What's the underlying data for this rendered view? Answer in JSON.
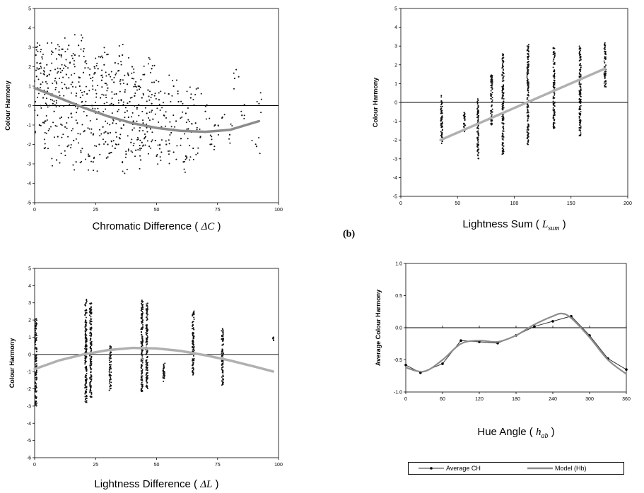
{
  "panel_label_b": "(b)",
  "colors": {
    "points": "#111111",
    "model": "#8c8c8c",
    "model_light": "#b0b0b0",
    "avg_line": "#333333"
  },
  "legend": {
    "average_ch": "Average CH",
    "model_hb": "Model (Hb)"
  },
  "chart_data": [
    {
      "id": "chart-a",
      "type": "scatter",
      "title": "",
      "ylabel": "Colour Harmony",
      "xlabel_text": "Chromatic Difference ( ",
      "xlabel_symbol": "ΔC",
      "xlabel_close": " )",
      "xlim": [
        0,
        100
      ],
      "ylim": [
        -5,
        5
      ],
      "xticks": [
        "0",
        "25",
        "50",
        "75",
        "100"
      ],
      "yticks": [
        "5",
        "4",
        "3",
        "2",
        "1",
        "0",
        "-1",
        "-2",
        "-3",
        "-4",
        "-5"
      ],
      "zero_line": true,
      "points": [
        [
          0.5,
          2.6
        ],
        [
          1,
          2.2
        ],
        [
          0.8,
          1.5
        ],
        [
          1.5,
          0.8
        ],
        [
          2,
          1.9
        ],
        [
          0.3,
          0.2
        ],
        [
          1.2,
          -0.5
        ],
        [
          2.5,
          1.1
        ],
        [
          0.6,
          3.0
        ],
        [
          3,
          2.5
        ],
        [
          3.5,
          0.4
        ],
        [
          4,
          1.6
        ],
        [
          4.5,
          -0.8
        ],
        [
          5,
          2.1
        ],
        [
          5.5,
          0.9
        ],
        [
          6,
          -1.2
        ],
        [
          6.5,
          1.8
        ],
        [
          7,
          2.8
        ],
        [
          7.5,
          0.1
        ],
        [
          8,
          -0.3
        ],
        [
          8.5,
          1.4
        ],
        [
          9,
          2.4
        ],
        [
          9.5,
          -1.6
        ],
        [
          10,
          0.7
        ],
        [
          10.5,
          1.9
        ],
        [
          11,
          -0.6
        ],
        [
          11.5,
          2.9
        ],
        [
          12,
          0.3
        ],
        [
          12.5,
          -1.1
        ],
        [
          13,
          1.6
        ],
        [
          13.5,
          -2.1
        ],
        [
          14,
          0.9
        ],
        [
          14.5,
          2.2
        ],
        [
          15,
          -0.4
        ],
        [
          15.5,
          1.2
        ],
        [
          16,
          -1.8
        ],
        [
          16.5,
          2.6
        ],
        [
          17,
          0.5
        ],
        [
          17.5,
          -0.9
        ],
        [
          18,
          3.1
        ],
        [
          18.5,
          1.0
        ],
        [
          19,
          -2.4
        ],
        [
          19.5,
          0.2
        ],
        [
          20,
          1.7
        ],
        [
          20.5,
          -1.3
        ],
        [
          21,
          2.3
        ],
        [
          21.5,
          0.6
        ],
        [
          22,
          -0.2
        ],
        [
          22.5,
          -2.6
        ],
        [
          23,
          1.4
        ],
        [
          23.5,
          0.0
        ],
        [
          24,
          -1.5
        ],
        [
          24.5,
          2.0
        ],
        [
          25,
          0.8
        ],
        [
          25.5,
          -0.7
        ],
        [
          26,
          1.9
        ],
        [
          26.5,
          -2.0
        ],
        [
          27,
          0.4
        ],
        [
          27.5,
          1.3
        ],
        [
          28,
          -1.1
        ],
        [
          28.5,
          2.1
        ],
        [
          29,
          -0.5
        ],
        [
          29.5,
          -2.7
        ],
        [
          30,
          0.9
        ],
        [
          30.5,
          1.6
        ],
        [
          31,
          -1.4
        ],
        [
          31.5,
          0.1
        ],
        [
          32,
          -0.9
        ],
        [
          32.5,
          1.2
        ],
        [
          33,
          -2.2
        ],
        [
          33.5,
          0.6
        ],
        [
          34,
          -0.3
        ],
        [
          34.5,
          1.8
        ],
        [
          35,
          -1.7
        ],
        [
          35.5,
          0.3
        ],
        [
          36,
          2.6
        ],
        [
          36.5,
          -1.0
        ],
        [
          37,
          0.7
        ],
        [
          37.5,
          -2.5
        ],
        [
          38,
          1.1
        ],
        [
          38.5,
          -0.6
        ],
        [
          39,
          0.2
        ],
        [
          39.5,
          -1.9
        ],
        [
          40,
          1.4
        ],
        [
          40.5,
          -0.8
        ],
        [
          41,
          0.5
        ],
        [
          41.5,
          -2.3
        ],
        [
          42,
          -0.1
        ],
        [
          42.5,
          1.0
        ],
        [
          43,
          -1.3
        ],
        [
          43.5,
          -2.8
        ],
        [
          44,
          0.4
        ],
        [
          44.5,
          -0.9
        ],
        [
          45,
          1.6
        ],
        [
          45.5,
          -1.6
        ],
        [
          46,
          -0.4
        ],
        [
          46.5,
          0.8
        ],
        [
          47,
          -2.1
        ],
        [
          47.5,
          -1.2
        ],
        [
          48,
          0.1
        ],
        [
          48.5,
          -0.7
        ],
        [
          49,
          1.2
        ],
        [
          49.5,
          -1.8
        ],
        [
          50,
          -2.6
        ],
        [
          51,
          0.3
        ],
        [
          52,
          -1.1
        ],
        [
          53,
          -0.5
        ],
        [
          54,
          -2.0
        ],
        [
          55,
          0.6
        ],
        [
          56,
          -1.4
        ],
        [
          57,
          -2.4
        ],
        [
          58,
          -0.8
        ],
        [
          59,
          0.2
        ],
        [
          60,
          -1.7
        ],
        [
          61,
          -2.9
        ],
        [
          62,
          -0.4
        ],
        [
          63,
          -1.2
        ],
        [
          64,
          0.4
        ],
        [
          65,
          -2.2
        ],
        [
          66,
          -0.9
        ],
        [
          68,
          -1.6
        ],
        [
          70,
          -0.3
        ],
        [
          72,
          -2.0
        ],
        [
          74,
          -1.0
        ],
        [
          77,
          -0.6
        ],
        [
          80,
          -1.5
        ],
        [
          82,
          1.4
        ],
        [
          85,
          -0.5
        ],
        [
          91,
          -2.1
        ],
        [
          92,
          0.1
        ],
        [
          2,
          -1.0
        ],
        [
          4,
          -2.2
        ],
        [
          6,
          0.0
        ],
        [
          9,
          -2.8
        ],
        [
          11,
          2.6
        ],
        [
          14,
          3.1
        ],
        [
          17,
          -2.9
        ],
        [
          20,
          2.8
        ],
        [
          24,
          -2.9
        ],
        [
          27,
          2.5
        ],
        [
          30,
          -2.0
        ],
        [
          33,
          2.2
        ],
        [
          36,
          -2.9
        ],
        [
          40,
          2.0
        ],
        [
          44,
          -1.9
        ],
        [
          48,
          1.9
        ],
        [
          52,
          -2.4
        ],
        [
          57,
          1.0
        ],
        [
          62,
          -2.6
        ],
        [
          67,
          0.9
        ]
      ],
      "curve": [
        [
          0,
          0.9
        ],
        [
          10,
          0.4
        ],
        [
          20,
          -0.1
        ],
        [
          30,
          -0.55
        ],
        [
          40,
          -0.9
        ],
        [
          50,
          -1.15
        ],
        [
          60,
          -1.3
        ],
        [
          70,
          -1.35
        ],
        [
          80,
          -1.25
        ],
        [
          92,
          -0.8
        ]
      ],
      "curve_color": "model"
    },
    {
      "id": "chart-b",
      "type": "scatter",
      "title": "",
      "ylabel": "Colour Harmony",
      "xlabel_text": "Lightness Sum ( ",
      "xlabel_symbol": "L",
      "xlabel_sub": "sum",
      "xlabel_close": " )",
      "xlim": [
        0,
        200
      ],
      "ylim": [
        -5,
        5
      ],
      "xticks": [
        "0",
        "50",
        "100",
        "150",
        "200"
      ],
      "yticks": [
        "5",
        "4",
        "3",
        "2",
        "1",
        "0",
        "-1",
        "-2",
        "-3",
        "-4",
        "-5"
      ],
      "zero_line": true,
      "columns": [
        {
          "x": 36,
          "min": -2.2,
          "max": 0.5
        },
        {
          "x": 56,
          "min": -1.6,
          "max": -0.5
        },
        {
          "x": 68,
          "min": -3.0,
          "max": 0.2
        },
        {
          "x": 80,
          "min": -1.2,
          "max": 1.5
        },
        {
          "x": 90,
          "min": -2.8,
          "max": 2.6
        },
        {
          "x": 112,
          "min": -2.3,
          "max": 3.1
        },
        {
          "x": 135,
          "min": -1.4,
          "max": 3.0
        },
        {
          "x": 158,
          "min": -1.8,
          "max": 3.2
        },
        {
          "x": 180,
          "min": 0.8,
          "max": 3.2
        }
      ],
      "curve": [
        [
          35,
          -2.0
        ],
        [
          180,
          1.8
        ]
      ],
      "curve_color": "model_light"
    },
    {
      "id": "chart-c",
      "type": "scatter",
      "title": "",
      "ylabel": "Colour Harmony",
      "xlabel_text": "Lightness Difference ( ",
      "xlabel_symbol": "ΔL",
      "xlabel_close": " )",
      "xlim": [
        0,
        100
      ],
      "ylim": [
        -6,
        5
      ],
      "xticks": [
        "0",
        "25",
        "50",
        "75",
        "100"
      ],
      "yticks": [
        "5",
        "4",
        "3",
        "2",
        "1",
        "0",
        "-1",
        "-2",
        "-3",
        "-4",
        "-5",
        "-6"
      ],
      "zero_line": true,
      "columns": [
        {
          "x": 0.5,
          "min": -3.0,
          "max": 2.1
        },
        {
          "x": 21,
          "min": -2.8,
          "max": 3.2
        },
        {
          "x": 23,
          "min": -2.5,
          "max": 3.0
        },
        {
          "x": 31,
          "min": -2.1,
          "max": 0.5
        },
        {
          "x": 44,
          "min": -2.2,
          "max": 3.2
        },
        {
          "x": 46,
          "min": -2.0,
          "max": 3.0
        },
        {
          "x": 53,
          "min": -1.6,
          "max": -0.5
        },
        {
          "x": 65,
          "min": -1.2,
          "max": 2.6
        },
        {
          "x": 77,
          "min": -1.8,
          "max": 1.5
        },
        {
          "x": 98,
          "min": 0.8,
          "max": 1.0
        }
      ],
      "curve": [
        [
          0,
          -0.85
        ],
        [
          10,
          -0.35
        ],
        [
          20,
          0.0
        ],
        [
          30,
          0.25
        ],
        [
          40,
          0.38
        ],
        [
          50,
          0.35
        ],
        [
          60,
          0.2
        ],
        [
          70,
          -0.05
        ],
        [
          80,
          -0.35
        ],
        [
          90,
          -0.7
        ],
        [
          98,
          -1.0
        ]
      ],
      "curve_color": "model_light"
    },
    {
      "id": "chart-d",
      "type": "line",
      "title": "",
      "ylabel": "Average Colour Harmony",
      "xlabel_text": "Hue Angle ( ",
      "xlabel_symbol": "h",
      "xlabel_sub": "ab",
      "xlabel_close": " )",
      "xlim": [
        0,
        360
      ],
      "ylim": [
        -1.0,
        1.0
      ],
      "xticks": [
        "0",
        "60",
        "120",
        "180",
        "240",
        "300",
        "360"
      ],
      "yticks": [
        "1.0",
        "0.5",
        "0.0",
        "-0.5",
        "-1.0"
      ],
      "zero_line": true,
      "series": [
        {
          "name": "Average CH",
          "x": [
            0,
            24,
            60,
            90,
            120,
            150,
            180,
            210,
            240,
            270,
            300,
            330,
            360
          ],
          "values": [
            -0.58,
            -0.7,
            -0.56,
            -0.2,
            -0.22,
            -0.24,
            -0.12,
            0.02,
            0.1,
            0.18,
            -0.12,
            -0.48,
            -0.65
          ]
        },
        {
          "name": "Model (Hb)",
          "x": [
            0,
            30,
            60,
            90,
            120,
            150,
            180,
            210,
            240,
            255,
            270,
            300,
            330,
            360
          ],
          "values": [
            -0.62,
            -0.68,
            -0.5,
            -0.25,
            -0.2,
            -0.22,
            -0.12,
            0.05,
            0.18,
            0.22,
            0.15,
            -0.15,
            -0.5,
            -0.72
          ]
        }
      ]
    }
  ]
}
